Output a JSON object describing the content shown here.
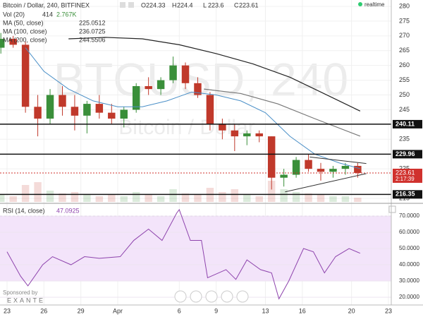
{
  "header": {
    "title": "Bitcoin / Dollar, 240, BITFINEX",
    "ohlc": [
      {
        "label": "O",
        "value": 224.33
      },
      {
        "label": "H",
        "value": 224.4
      },
      {
        "label": "L",
        "value": 223.6
      },
      {
        "label": "C",
        "value": 223.61
      }
    ],
    "realtime": "realtime"
  },
  "chart_data": [
    {
      "type": "candlestick",
      "watermark": "BTCUSD, 240",
      "watermark_sub": "Bitcoin / Dollar",
      "xlim": [
        -0.57,
        31.23
      ],
      "xticks": [
        {
          "value": 0,
          "label": "23"
        },
        {
          "value": 3,
          "label": "26"
        },
        {
          "value": 6,
          "label": "29"
        },
        {
          "value": 9,
          "label": "Apr"
        },
        {
          "value": 14,
          "label": "6"
        },
        {
          "value": 17,
          "label": "9"
        },
        {
          "value": 21,
          "label": "13"
        },
        {
          "value": 24,
          "label": "16"
        },
        {
          "value": 28,
          "label": "20"
        },
        {
          "value": 31,
          "label": "23"
        }
      ],
      "ylim": [
        213.8,
        282.15
      ],
      "yticks": [
        280,
        275,
        270,
        265,
        260,
        255,
        250,
        245,
        235,
        225,
        215
      ],
      "grid": true,
      "up_color": "#3a8f3a",
      "down_color": "#c0392b",
      "candles": {
        "x": [
          -0.5,
          0.5,
          1.5,
          2.5,
          3.5,
          4.5,
          5.5,
          6.5,
          7.5,
          8.5,
          9.5,
          10.5,
          11.5,
          12.5,
          13.5,
          14.5,
          15.5,
          16.5,
          17.5,
          18.5,
          19.5,
          20.5,
          21.5,
          22.5,
          23.5,
          24.5,
          25.5,
          26.5,
          27.5,
          28.5
        ],
        "open": [
          266,
          269,
          267,
          246,
          242,
          250,
          246,
          243,
          247,
          244,
          242,
          245,
          253,
          252,
          255,
          260,
          254,
          250,
          240,
          238,
          236,
          237,
          236,
          222,
          223,
          228,
          225,
          224,
          225,
          226
        ],
        "high": [
          271,
          270,
          268,
          250,
          252,
          253,
          250,
          248,
          250,
          247,
          246,
          254,
          256,
          256,
          263,
          261,
          256,
          251,
          242,
          240,
          238,
          238,
          236,
          225,
          229,
          230,
          227,
          226,
          227,
          227
        ],
        "low": [
          264,
          266,
          244,
          236,
          240,
          243,
          238,
          237,
          242,
          240,
          239,
          244,
          250,
          250,
          254,
          252,
          249,
          238,
          235,
          231,
          233,
          234,
          218,
          219,
          222,
          224,
          221,
          222,
          223,
          222
        ],
        "close": [
          269,
          267,
          246,
          242,
          250,
          246,
          243,
          247,
          244,
          242,
          245,
          253,
          252,
          255,
          260,
          254,
          250,
          240,
          238,
          236,
          237,
          236,
          222,
          223,
          228,
          225,
          224,
          225,
          226,
          223.61
        ]
      },
      "volume_legend": {
        "name": "Vol (20)",
        "values": [
          414,
          2767
        ],
        "value_labels": [
          "414",
          "2.767K"
        ]
      },
      "volume": [
        5000,
        4000,
        12000,
        14000,
        8000,
        6000,
        7000,
        5000,
        4000,
        5000,
        4000,
        7000,
        5000,
        4000,
        9000,
        6000,
        5000,
        10000,
        7000,
        9000,
        5000,
        4000,
        15000,
        9000,
        7000,
        6000,
        5000,
        4000,
        4000,
        3000
      ],
      "series": [
        {
          "name": "MA (50, close)",
          "color": "#4a8fc7",
          "legend_value": 225.0512,
          "x": [
            1.5,
            3,
            5,
            7,
            9,
            11,
            13,
            15,
            17,
            19,
            21,
            23,
            25,
            27,
            28.7
          ],
          "values": [
            266,
            258,
            252,
            248,
            246,
            246,
            248,
            251,
            250,
            248,
            244,
            236,
            230,
            227,
            225.05
          ]
        },
        {
          "name": "MA (100, close)",
          "color": "#777777",
          "legend_value": 236.0725,
          "x": [
            16,
            19,
            22,
            25,
            28.7
          ],
          "values": [
            252,
            250.5,
            247,
            242,
            236.07
          ]
        },
        {
          "name": "MA (200, close)",
          "color": "#222222",
          "legend_value": 244.5506,
          "x": [
            5,
            8,
            11,
            14,
            17,
            20,
            23,
            26,
            28.7
          ],
          "values": [
            269,
            269.5,
            269,
            267,
            264,
            260.5,
            256,
            250,
            244.55
          ]
        }
      ],
      "hlines": [
        240.11,
        229.96,
        216.35
      ],
      "last_price": {
        "value": 223.61,
        "color": "#d0312d",
        "countdown": "2:17:39"
      },
      "trendlines": [
        {
          "x": [
            24.6,
            29.2
          ],
          "values": [
            229,
            226.8
          ]
        },
        {
          "x": [
            22.6,
            29.2
          ],
          "values": [
            217.2,
            223.4
          ]
        }
      ]
    },
    {
      "type": "line",
      "title": "RSI (14, close)",
      "legend_value": 47.0925,
      "color": "#8e44ad",
      "band_color": "#f3e4fa",
      "ylim": [
        15.2,
        77
      ],
      "yticks": [
        {
          "value": 70,
          "label": "70.0000"
        },
        {
          "value": 60,
          "label": "60.0000"
        },
        {
          "value": 50,
          "label": "50.0000"
        },
        {
          "value": 40,
          "label": "40.0000"
        },
        {
          "value": 30,
          "label": "30.0000"
        },
        {
          "value": 20,
          "label": "20.0000"
        }
      ],
      "band": [
        30,
        70
      ],
      "x": [
        0,
        1.1,
        1.7,
        2.9,
        3.7,
        5.2,
        6.3,
        7.5,
        9.2,
        10.3,
        11.5,
        12.6,
        13.8,
        14,
        14.9,
        15.8,
        16.3,
        17.8,
        18.6,
        19.5,
        20.6,
        21.5,
        22.1,
        22.9,
        24.1,
        24.9,
        25.8,
        26.7,
        27.8,
        28.7
      ],
      "values": [
        48,
        33,
        27,
        40,
        45,
        40,
        45,
        44,
        45,
        55,
        62,
        55,
        72,
        74,
        55,
        55,
        32,
        37,
        31,
        43,
        37,
        35,
        19,
        30,
        50,
        48,
        35,
        45,
        50,
        47.09
      ]
    }
  ],
  "footer": {
    "sponsor": "Sponsored by",
    "brand": "EXANTE"
  }
}
